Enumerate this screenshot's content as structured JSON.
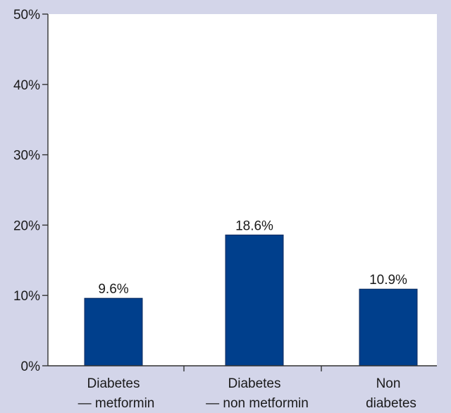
{
  "chart_data": {
    "type": "bar",
    "categories": [
      [
        "Diabetes",
        "— metformin"
      ],
      [
        "Diabetes",
        "— non metformin"
      ],
      [
        "Non",
        "diabetes"
      ]
    ],
    "values": [
      9.6,
      18.6,
      10.9
    ],
    "data_labels": [
      "9.6%",
      "18.6%",
      "10.9%"
    ],
    "title": "",
    "xlabel": "",
    "ylabel": "",
    "ylim": [
      0,
      50
    ],
    "yticks": [
      0,
      10,
      20,
      30,
      40,
      50
    ],
    "ytick_labels": [
      "0%",
      "10%",
      "20%",
      "30%",
      "40%",
      "50%"
    ],
    "grid": false,
    "legend": "none",
    "colors": {
      "bar": "#003f8c",
      "plot_background": "#ffffff",
      "page_background": "#d3d5e9"
    }
  }
}
